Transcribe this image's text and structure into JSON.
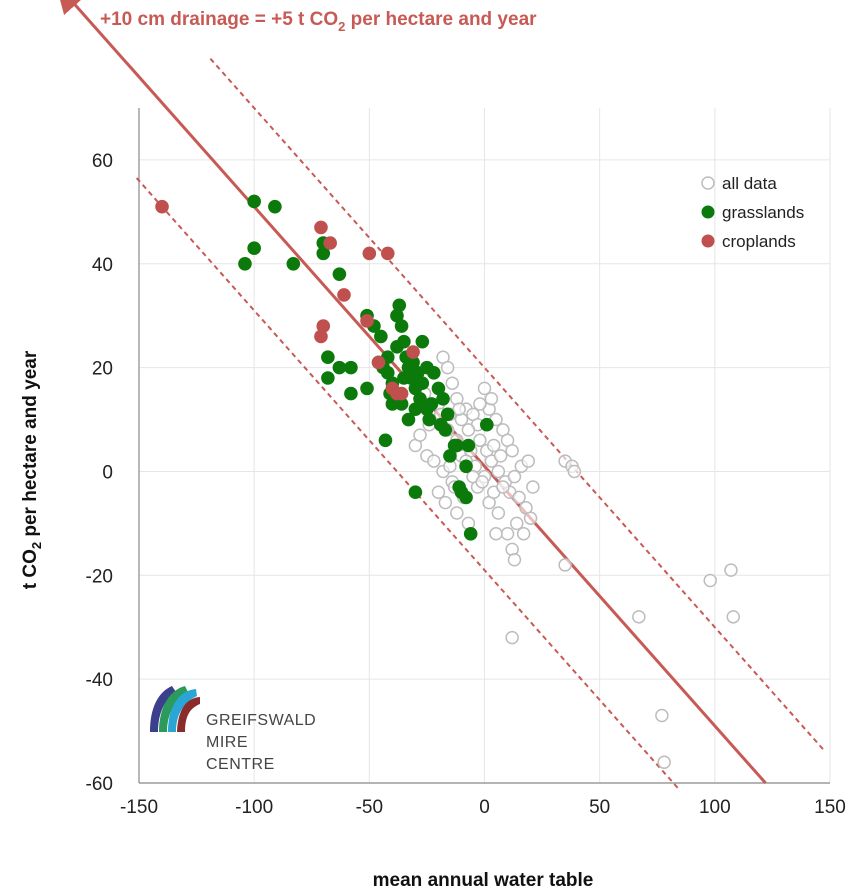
{
  "annotation": {
    "text_before": "+10 cm drainage = +5 t CO",
    "sub": "2",
    "text_after": " per hectare and year"
  },
  "y_axis_title": {
    "text_before": "t CO",
    "sub": "2",
    "text_after": " per hectare and year"
  },
  "logo": {
    "line1": "GREIFSWALD",
    "line2": "MIRE",
    "line3": "CENTRE"
  },
  "colors": {
    "trend": "#c85a55",
    "grasslands": "#0b7a0b",
    "croplands": "#c0504d",
    "all_data": "#bdbdbd",
    "grid": "#e6e6e6"
  },
  "chart_data": {
    "type": "scatter",
    "xlabel": "mean annual water table",
    "ylabel": "t CO2 per hectare and year",
    "xlim": [
      -150,
      150
    ],
    "ylim": [
      -60,
      70
    ],
    "xticks": [
      -150,
      -100,
      -50,
      0,
      50,
      100,
      150
    ],
    "yticks": [
      -60,
      -40,
      -20,
      0,
      20,
      40,
      60
    ],
    "grid": true,
    "legend": {
      "position": "top-right",
      "entries": [
        "all data",
        "grasslands",
        "croplands"
      ]
    },
    "trend_line": {
      "slope": -0.5,
      "intercept": 1,
      "x_start": -152,
      "x_end": 122,
      "arrow_at_start": true
    },
    "band_lines": [
      {
        "slope": -0.5,
        "intercept": 20,
        "x_start": -119,
        "x_end": 147,
        "style": "dashed"
      },
      {
        "slope": -0.5,
        "intercept": -19,
        "x_start": -151,
        "x_end": 85,
        "style": "dashed"
      }
    ],
    "series": [
      {
        "name": "all data",
        "marker": "open-circle",
        "points": [
          [
            -18,
            22
          ],
          [
            -16,
            20
          ],
          [
            -22,
            19
          ],
          [
            -14,
            17
          ],
          [
            -26,
            15
          ],
          [
            -12,
            14
          ],
          [
            -20,
            13
          ],
          [
            -8,
            12
          ],
          [
            -15,
            11
          ],
          [
            -10,
            10
          ],
          [
            -5,
            11
          ],
          [
            -3,
            9
          ],
          [
            0,
            16
          ],
          [
            2,
            12
          ],
          [
            5,
            10
          ],
          [
            8,
            8
          ],
          [
            10,
            6
          ],
          [
            12,
            4
          ],
          [
            -30,
            5
          ],
          [
            -25,
            3
          ],
          [
            -22,
            2
          ],
          [
            -18,
            0
          ],
          [
            -14,
            -2
          ],
          [
            -10,
            3
          ],
          [
            -6,
            4
          ],
          [
            -4,
            1
          ],
          [
            -2,
            6
          ],
          [
            1,
            4
          ],
          [
            3,
            2
          ],
          [
            6,
            0
          ],
          [
            9,
            -2
          ],
          [
            11,
            -4
          ],
          [
            13,
            -1
          ],
          [
            15,
            -5
          ],
          [
            18,
            -7
          ],
          [
            -20,
            -4
          ],
          [
            -17,
            -6
          ],
          [
            -12,
            -8
          ],
          [
            -9,
            -5
          ],
          [
            -7,
            -10
          ],
          [
            -3,
            -3
          ],
          [
            0,
            -1
          ],
          [
            2,
            -6
          ],
          [
            4,
            -4
          ],
          [
            6,
            -8
          ],
          [
            10,
            -12
          ],
          [
            14,
            -10
          ],
          [
            17,
            -12
          ],
          [
            20,
            -9
          ],
          [
            12,
            -15
          ],
          [
            13,
            -17
          ],
          [
            -16,
            8
          ],
          [
            -12,
            6
          ],
          [
            -8,
            2
          ],
          [
            -5,
            -1
          ],
          [
            -1,
            -2
          ],
          [
            4,
            5
          ],
          [
            7,
            3
          ],
          [
            16,
            1
          ],
          [
            19,
            2
          ],
          [
            21,
            -3
          ],
          [
            -24,
            9
          ],
          [
            -28,
            7
          ],
          [
            -19,
            11
          ],
          [
            -11,
            12
          ],
          [
            -7,
            8
          ],
          [
            -2,
            13
          ],
          [
            3,
            14
          ],
          [
            -13,
            -3
          ],
          [
            -15,
            1
          ],
          [
            8,
            -3
          ],
          [
            5,
            -12
          ],
          [
            35,
            2
          ],
          [
            38,
            1
          ],
          [
            39,
            0
          ],
          [
            35,
            -18
          ],
          [
            12,
            -32
          ],
          [
            67,
            -28
          ],
          [
            77,
            -47
          ],
          [
            78,
            -56
          ],
          [
            98,
            -21
          ],
          [
            107,
            -19
          ],
          [
            108,
            -28
          ]
        ]
      },
      {
        "name": "grasslands",
        "marker": "filled-circle",
        "points": [
          [
            -100,
            52
          ],
          [
            -91,
            51
          ],
          [
            -100,
            43
          ],
          [
            -104,
            40
          ],
          [
            -83,
            40
          ],
          [
            -70,
            44
          ],
          [
            -70,
            42
          ],
          [
            -63,
            38
          ],
          [
            -68,
            22
          ],
          [
            -63,
            20
          ],
          [
            -68,
            18
          ],
          [
            -58,
            20
          ],
          [
            -58,
            15
          ],
          [
            -51,
            16
          ],
          [
            -51,
            30
          ],
          [
            -48,
            28
          ],
          [
            -45,
            26
          ],
          [
            -42,
            22
          ],
          [
            -42,
            19
          ],
          [
            -40,
            17
          ],
          [
            -40,
            13
          ],
          [
            -38,
            30
          ],
          [
            -37,
            32
          ],
          [
            -36,
            28
          ],
          [
            -35,
            25
          ],
          [
            -34,
            22
          ],
          [
            -33,
            20
          ],
          [
            -32,
            18
          ],
          [
            -30,
            16
          ],
          [
            -28,
            14
          ],
          [
            -27,
            25
          ],
          [
            -25,
            12
          ],
          [
            -24,
            10
          ],
          [
            -22,
            19
          ],
          [
            -20,
            16
          ],
          [
            -18,
            14
          ],
          [
            -17,
            8
          ],
          [
            -15,
            3
          ],
          [
            -13,
            5
          ],
          [
            -11,
            -3
          ],
          [
            -10,
            -4
          ],
          [
            -8,
            -5
          ],
          [
            -8,
            1
          ],
          [
            -7,
            5
          ],
          [
            -6,
            -12
          ],
          [
            -30,
            -4
          ],
          [
            -43,
            6
          ],
          [
            -44,
            20
          ],
          [
            -38,
            24
          ],
          [
            -35,
            18
          ],
          [
            -31,
            21
          ],
          [
            -29,
            19
          ],
          [
            -27,
            17
          ],
          [
            -25,
            20
          ],
          [
            -23,
            13
          ],
          [
            -19,
            9
          ],
          [
            -16,
            11
          ],
          [
            -12,
            5
          ],
          [
            1,
            9
          ],
          [
            -41,
            15
          ],
          [
            -36,
            13
          ],
          [
            -33,
            10
          ],
          [
            -30,
            12
          ],
          [
            -46,
            21
          ]
        ]
      },
      {
        "name": "croplands",
        "marker": "filled-circle",
        "points": [
          [
            -140,
            51
          ],
          [
            -71,
            47
          ],
          [
            -67,
            44
          ],
          [
            -50,
            42
          ],
          [
            -42,
            42
          ],
          [
            -61,
            34
          ],
          [
            -71,
            26
          ],
          [
            -70,
            28
          ],
          [
            -51,
            29
          ],
          [
            -46,
            21
          ],
          [
            -40,
            16
          ],
          [
            -38,
            15
          ],
          [
            -36,
            15
          ],
          [
            -31,
            23
          ]
        ]
      }
    ]
  }
}
